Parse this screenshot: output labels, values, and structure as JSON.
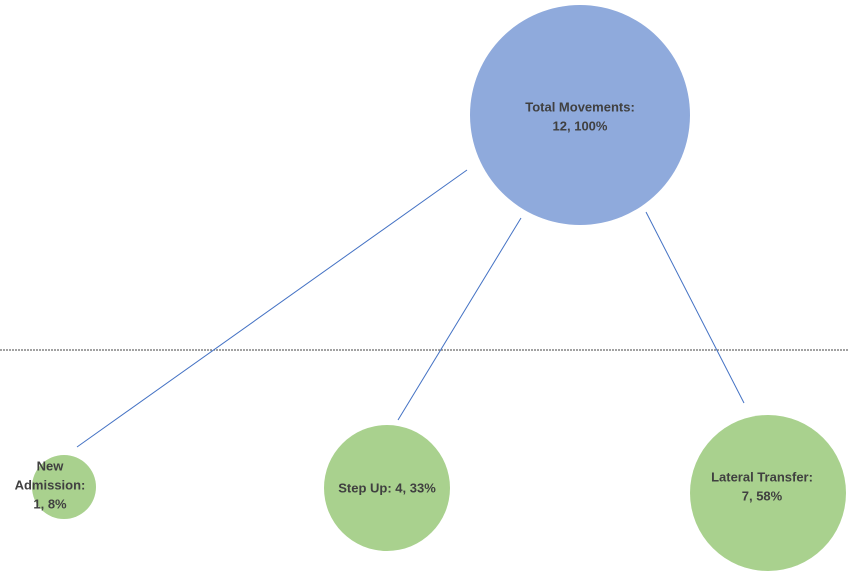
{
  "nodes": [
    {
      "lines": [
        "Total Movements:",
        "12, 100%"
      ]
    },
    {
      "lines": [
        "New",
        "Admission:",
        "1, 8%"
      ]
    },
    {
      "lines": [
        "Step Up: 4, 33%"
      ]
    },
    {
      "lines": [
        "Lateral Transfer:",
        "7, 58%"
      ]
    }
  ]
}
